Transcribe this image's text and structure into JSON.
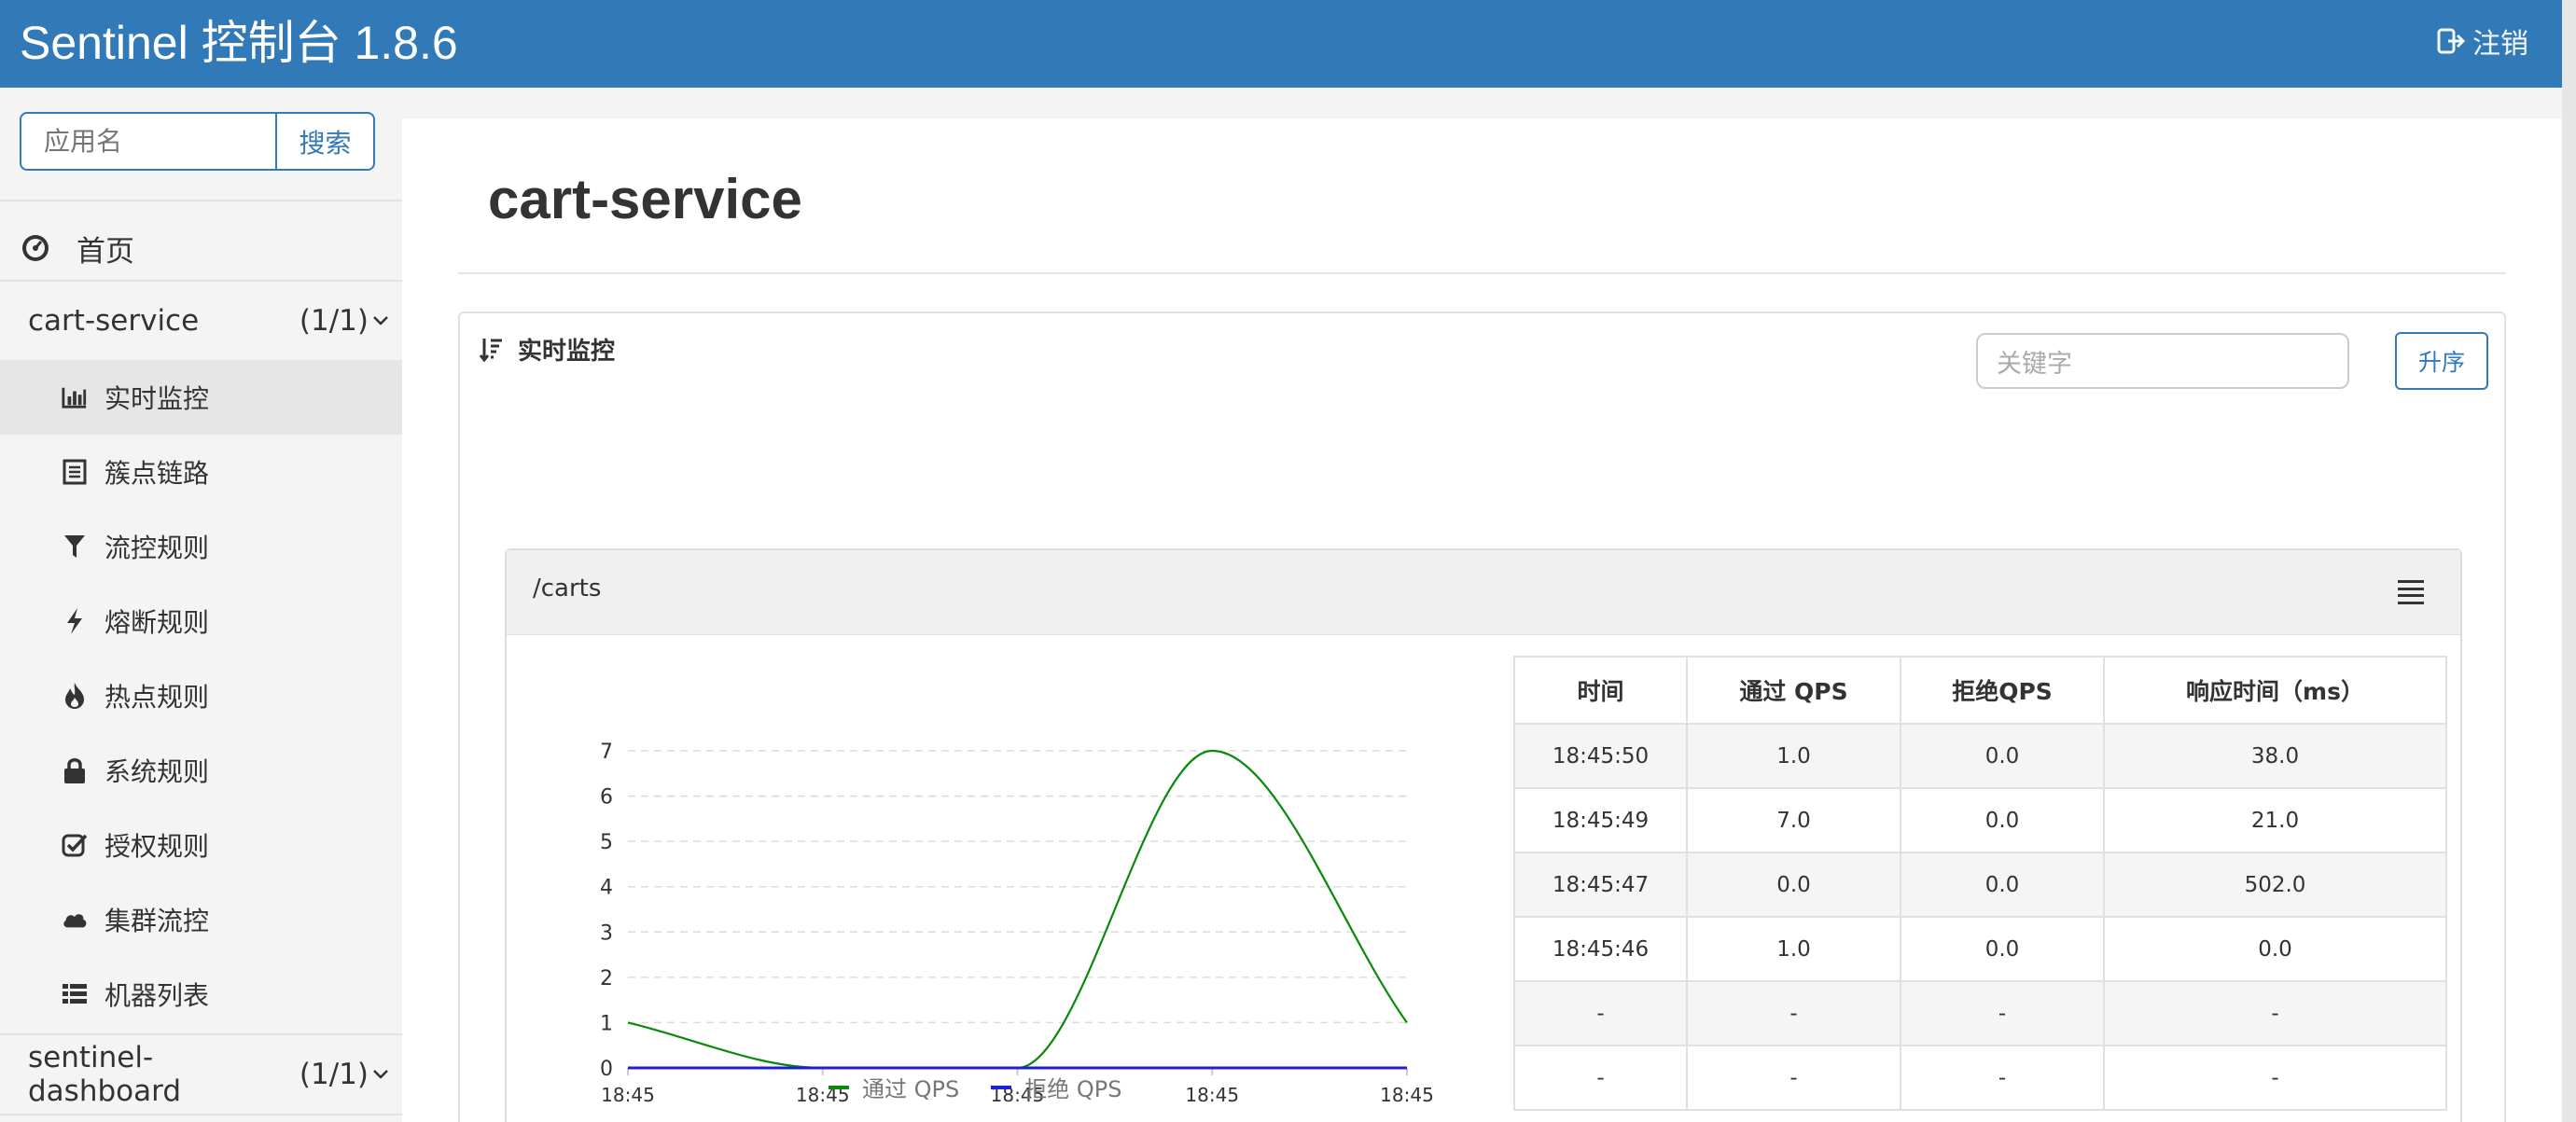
{
  "header": {
    "title": "Sentinel 控制台 1.8.6",
    "logout_label": "注销"
  },
  "sidebar": {
    "search": {
      "placeholder": "应用名",
      "button_label": "搜索"
    },
    "home_label": "首页",
    "apps": [
      {
        "name": "cart-service",
        "count": "(1/1)",
        "menu": [
          {
            "label": "实时监控",
            "icon": "bar-chart-icon",
            "active": true
          },
          {
            "label": "簇点链路",
            "icon": "list-alt-icon"
          },
          {
            "label": "流控规则",
            "icon": "filter-icon"
          },
          {
            "label": "熔断规则",
            "icon": "flash-icon"
          },
          {
            "label": "热点规则",
            "icon": "fire-icon"
          },
          {
            "label": "系统规则",
            "icon": "lock-icon"
          },
          {
            "label": "授权规则",
            "icon": "check-icon"
          },
          {
            "label": "集群流控",
            "icon": "cloud-icon"
          },
          {
            "label": "机器列表",
            "icon": "th-list-icon"
          }
        ]
      },
      {
        "name": "sentinel-dashboard",
        "count": "(1/1)"
      }
    ]
  },
  "main": {
    "title": "cart-service",
    "panel": {
      "title": "实时监控",
      "keyword_placeholder": "关键字",
      "sort_label": "升序",
      "resource": {
        "name": "/carts",
        "chart_data": {
          "type": "line",
          "x": [
            "18:45",
            "18:45",
            "18:45",
            "18:45",
            "18:45"
          ],
          "ylim": [
            0,
            7
          ],
          "yticks": [
            0,
            1,
            2,
            3,
            4,
            5,
            6,
            7
          ],
          "grid": true,
          "legend_position": "bottom",
          "series": [
            {
              "name": "通过 QPS",
              "color": "#0a8a0a",
              "values": [
                1,
                0,
                0,
                7,
                1
              ]
            },
            {
              "name": "拒绝 QPS",
              "color": "#1f1fd6",
              "values": [
                0,
                0,
                0,
                0,
                0
              ]
            }
          ]
        },
        "table": {
          "columns": [
            "时间",
            "通过 QPS",
            "拒绝QPS",
            "响应时间（ms）"
          ],
          "rows": [
            [
              "18:45:50",
              "1.0",
              "0.0",
              "38.0"
            ],
            [
              "18:45:49",
              "7.0",
              "0.0",
              "21.0"
            ],
            [
              "18:45:47",
              "0.0",
              "0.0",
              "502.0"
            ],
            [
              "18:45:46",
              "1.0",
              "0.0",
              "0.0"
            ],
            [
              "-",
              "-",
              "-",
              "-"
            ],
            [
              "-",
              "-",
              "-",
              "-"
            ]
          ]
        }
      }
    }
  }
}
